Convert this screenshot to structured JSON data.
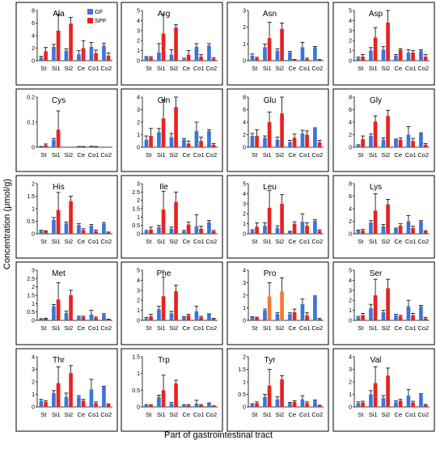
{
  "figure": {
    "ylabel": "Concentration (μmol/g)",
    "xlabel": "Part of gastrointestinal tract",
    "legend": [
      {
        "label": "GF",
        "color": "#3a76d8"
      },
      {
        "label": "SPF",
        "color": "#e8231f"
      }
    ],
    "colors": {
      "GF": "#3a76d8",
      "SPF": "#e8231f",
      "SPF_pro": "#f47a2e",
      "error_bar": "#000000"
    }
  },
  "chart_data": [
    {
      "type": "bar",
      "title": "Ala",
      "categories": [
        "St",
        "Si1",
        "Si2",
        "Ce",
        "Co1",
        "Co2"
      ],
      "ylim": [
        0,
        8
      ],
      "yticks": [
        0,
        2,
        4,
        6,
        8
      ],
      "legend": "top-right",
      "series": [
        {
          "name": "GF",
          "values": [
            0.5,
            2.2,
            1.6,
            1.0,
            2.2,
            2.4
          ],
          "errors": [
            0.2,
            0.4,
            0.3,
            0.6,
            0.7,
            0.4
          ]
        },
        {
          "name": "SPF",
          "values": [
            1.5,
            4.8,
            5.9,
            2.0,
            1.2,
            0.8
          ],
          "errors": [
            0.6,
            2.6,
            1.0,
            1.2,
            0.5,
            0.4
          ]
        }
      ]
    },
    {
      "type": "bar",
      "title": "Arg",
      "categories": [
        "St",
        "Si1",
        "Si2",
        "Ce",
        "Co1",
        "Co2"
      ],
      "ylim": [
        0,
        5
      ],
      "yticks": [
        0,
        1,
        2,
        3,
        4,
        5
      ],
      "series": [
        {
          "name": "GF",
          "values": [
            0.35,
            0.8,
            0.6,
            0.15,
            1.4,
            1.5
          ],
          "errors": [
            0.05,
            0.9,
            0.5,
            0.1,
            0.3,
            0.2
          ]
        },
        {
          "name": "SPF",
          "values": [
            0.3,
            2.7,
            3.3,
            0.6,
            0.4,
            0.2
          ],
          "errors": [
            0.1,
            1.9,
            0.3,
            0.4,
            0.2,
            0.1
          ]
        }
      ]
    },
    {
      "type": "bar",
      "title": "Asn",
      "categories": [
        "St",
        "Si1",
        "Si2",
        "Ce",
        "Co1",
        "Co2"
      ],
      "ylim": [
        0,
        3
      ],
      "yticks": [
        0,
        1,
        2,
        3
      ],
      "series": [
        {
          "name": "GF",
          "values": [
            0.3,
            0.8,
            0.6,
            0.5,
            0.8,
            0.8
          ],
          "errors": [
            0.1,
            0.2,
            0.1,
            0.05,
            0.3,
            0.05
          ]
        },
        {
          "name": "SPF",
          "values": [
            0.15,
            1.35,
            1.9,
            0.05,
            0.1,
            0.05
          ],
          "errors": [
            0.05,
            0.95,
            0.35,
            0.02,
            0.05,
            0.02
          ]
        }
      ]
    },
    {
      "type": "bar",
      "title": "Asp",
      "categories": [
        "St",
        "Si1",
        "Si2",
        "Ce",
        "Co1",
        "Co2"
      ],
      "ylim": [
        0,
        5
      ],
      "yticks": [
        0,
        1,
        2,
        3,
        4,
        5
      ],
      "series": [
        {
          "name": "GF",
          "values": [
            0.25,
            1.0,
            1.1,
            0.5,
            0.8,
            1.0
          ],
          "errors": [
            0.1,
            0.3,
            0.3,
            0.1,
            0.3,
            0.1
          ]
        },
        {
          "name": "SPF",
          "values": [
            0.4,
            2.3,
            3.8,
            1.1,
            0.8,
            0.4
          ],
          "errors": [
            0.2,
            1.0,
            1.2,
            0.1,
            0.2,
            0.2
          ]
        }
      ]
    },
    {
      "type": "bar",
      "title": "Cys",
      "categories": [
        "St",
        "Si1",
        "Si2",
        "Ce",
        "Co1",
        "Co2"
      ],
      "ylim": [
        0,
        0.2
      ],
      "yticks": [
        0,
        0.1,
        0.2
      ],
      "series": [
        {
          "name": "GF",
          "values": [
            0.002,
            0.03,
            0.0,
            0.002,
            0.003,
            0.0
          ],
          "errors": [
            0.001,
            0.005,
            0,
            0.001,
            0.001,
            0
          ]
        },
        {
          "name": "SPF",
          "values": [
            0.008,
            0.07,
            0.0,
            0.002,
            0.002,
            0.0
          ],
          "errors": [
            0.005,
            0.075,
            0,
            0.001,
            0.001,
            0
          ]
        }
      ]
    },
    {
      "type": "bar",
      "title": "Gln",
      "categories": [
        "St",
        "Si1",
        "Si2",
        "Ce",
        "Co1",
        "Co2"
      ],
      "ylim": [
        0,
        4
      ],
      "yticks": [
        0,
        1,
        2,
        3,
        4
      ],
      "series": [
        {
          "name": "GF",
          "values": [
            0.6,
            1.2,
            0.8,
            0.6,
            1.3,
            1.3
          ],
          "errors": [
            0.3,
            0.3,
            0.3,
            0.1,
            0.7,
            0.1
          ]
        },
        {
          "name": "SPF",
          "values": [
            0.9,
            2.3,
            3.2,
            0.3,
            0.5,
            0.2
          ],
          "errors": [
            0.6,
            1.5,
            0.8,
            0.2,
            0.3,
            0.1
          ]
        }
      ]
    },
    {
      "type": "bar",
      "title": "Glu",
      "categories": [
        "St",
        "Si1",
        "Si2",
        "Ce",
        "Co1",
        "Co2"
      ],
      "ylim": [
        0,
        8
      ],
      "yticks": [
        0,
        2,
        4,
        6,
        8
      ],
      "series": [
        {
          "name": "GF",
          "values": [
            1.8,
            1.5,
            1.2,
            0.8,
            2.2,
            3.0
          ],
          "errors": [
            0.4,
            0.3,
            0.4,
            0.3,
            0.5,
            0.1
          ]
        },
        {
          "name": "SPF",
          "values": [
            1.8,
            4.0,
            5.4,
            1.5,
            2.0,
            0.8
          ],
          "errors": [
            1.0,
            1.6,
            2.6,
            0.6,
            0.6,
            0.3
          ]
        }
      ]
    },
    {
      "type": "bar",
      "title": "Gly",
      "categories": [
        "St",
        "Si1",
        "Si2",
        "Ce",
        "Co1",
        "Co2"
      ],
      "ylim": [
        0,
        8
      ],
      "yticks": [
        0,
        2,
        4,
        6,
        8
      ],
      "series": [
        {
          "name": "GF",
          "values": [
            0.3,
            1.8,
            1.2,
            1.2,
            2.0,
            2.2
          ],
          "errors": [
            0.1,
            0.3,
            0.3,
            0.1,
            1.3,
            0.1
          ]
        },
        {
          "name": "SPF",
          "values": [
            1.3,
            4.1,
            5.0,
            1.2,
            1.0,
            0.4
          ],
          "errors": [
            0.5,
            0.9,
            0.9,
            0.3,
            0.4,
            0.2
          ]
        }
      ]
    },
    {
      "type": "bar",
      "title": "His",
      "categories": [
        "St",
        "Si1",
        "Si2",
        "Ce",
        "Co1",
        "Co2"
      ],
      "ylim": [
        0,
        2
      ],
      "yticks": [
        0,
        0.5,
        1,
        1.5,
        2
      ],
      "series": [
        {
          "name": "GF",
          "values": [
            0.12,
            0.55,
            0.42,
            0.35,
            0.32,
            0.4
          ],
          "errors": [
            0.02,
            0.1,
            0.05,
            0.05,
            0.05,
            0.05
          ]
        },
        {
          "name": "SPF",
          "values": [
            0.1,
            0.95,
            1.3,
            0.15,
            0.1,
            0.05
          ],
          "errors": [
            0.02,
            0.7,
            0.2,
            0.05,
            0.05,
            0.02
          ]
        }
      ]
    },
    {
      "type": "bar",
      "title": "Ile",
      "categories": [
        "St",
        "Si1",
        "Si2",
        "Ce",
        "Co1",
        "Co2"
      ],
      "ylim": [
        0,
        3
      ],
      "yticks": [
        0,
        0.5,
        1,
        1.5,
        2,
        2.5,
        3
      ],
      "series": [
        {
          "name": "GF",
          "values": [
            0.15,
            0.4,
            0.3,
            0.15,
            0.45,
            0.7
          ],
          "errors": [
            0.05,
            0.1,
            0.1,
            0.05,
            0.7,
            0.1
          ]
        },
        {
          "name": "SPF",
          "values": [
            0.25,
            1.45,
            1.9,
            0.55,
            0.3,
            0.15
          ],
          "errors": [
            0.15,
            1.1,
            0.6,
            0.15,
            0.15,
            0.05
          ]
        }
      ]
    },
    {
      "type": "bar",
      "title": "Leu",
      "categories": [
        "St",
        "Si1",
        "Si2",
        "Ce",
        "Co1",
        "Co2"
      ],
      "ylim": [
        0,
        5
      ],
      "yticks": [
        0,
        1,
        2,
        3,
        4,
        5
      ],
      "series": [
        {
          "name": "GF",
          "values": [
            0.3,
            0.8,
            0.6,
            0.2,
            1.2,
            1.3
          ],
          "errors": [
            0.1,
            0.3,
            0.2,
            0.05,
            0.8,
            0.1
          ]
        },
        {
          "name": "SPF",
          "values": [
            0.7,
            2.6,
            3.0,
            1.0,
            0.8,
            0.3
          ],
          "errors": [
            0.4,
            1.7,
            0.9,
            0.2,
            0.3,
            0.1
          ]
        }
      ]
    },
    {
      "type": "bar",
      "title": "Lys",
      "categories": [
        "St",
        "Si1",
        "Si2",
        "Ce",
        "Co1",
        "Co2"
      ],
      "ylim": [
        0,
        8
      ],
      "yticks": [
        0,
        2,
        4,
        6,
        8
      ],
      "series": [
        {
          "name": "GF",
          "values": [
            0.5,
            1.8,
            1.2,
            0.8,
            2.0,
            2.0
          ],
          "errors": [
            0.1,
            0.3,
            0.3,
            0.1,
            0.9,
            0.1
          ]
        },
        {
          "name": "SPF",
          "values": [
            0.5,
            3.7,
            4.7,
            1.3,
            0.9,
            0.4
          ],
          "errors": [
            0.2,
            2.7,
            0.8,
            0.3,
            0.3,
            0.1
          ]
        }
      ]
    },
    {
      "type": "bar",
      "title": "Met",
      "categories": [
        "St",
        "Si1",
        "Si2",
        "Ce",
        "Co1",
        "Co2"
      ],
      "ylim": [
        0,
        3
      ],
      "yticks": [
        0,
        0.5,
        1,
        1.5,
        2,
        2.5,
        3
      ],
      "series": [
        {
          "name": "GF",
          "values": [
            0.08,
            0.85,
            0.45,
            0.2,
            0.35,
            0.35
          ],
          "errors": [
            0.02,
            0.1,
            0.1,
            0.05,
            0.25,
            0.05
          ]
        },
        {
          "name": "SPF",
          "values": [
            0.1,
            1.25,
            1.5,
            0.2,
            0.15,
            0.05
          ],
          "errors": [
            0.03,
            1.0,
            0.3,
            0.05,
            0.05,
            0.02
          ]
        }
      ]
    },
    {
      "type": "bar",
      "title": "Phe",
      "categories": [
        "St",
        "Si1",
        "Si2",
        "Ce",
        "Co1",
        "Co2"
      ],
      "ylim": [
        0,
        5
      ],
      "yticks": [
        0,
        1,
        2,
        3,
        4,
        5
      ],
      "series": [
        {
          "name": "GF",
          "values": [
            0.2,
            1.1,
            0.7,
            0.3,
            0.9,
            0.6
          ],
          "errors": [
            0.1,
            0.3,
            0.2,
            0.05,
            0.5,
            0.05
          ]
        },
        {
          "name": "SPF",
          "values": [
            0.4,
            2.4,
            2.9,
            0.5,
            0.3,
            0.15
          ],
          "errors": [
            0.2,
            1.9,
            0.6,
            0.1,
            0.1,
            0.05
          ]
        }
      ]
    },
    {
      "type": "bar",
      "title": "Pro",
      "categories": [
        "St",
        "Si1",
        "Si2",
        "Ce",
        "Co1",
        "Co2"
      ],
      "ylim": [
        0,
        4
      ],
      "yticks": [
        0,
        1,
        2,
        3,
        4
      ],
      "series": [
        {
          "name": "GF",
          "values": [
            0.25,
            0.8,
            0.5,
            0.5,
            1.3,
            1.9
          ],
          "errors": [
            0.05,
            0.1,
            0.1,
            0.1,
            0.4,
            0.05
          ]
        },
        {
          "name": "SPF",
          "values": [
            0.2,
            1.9,
            2.3,
            0.65,
            0.4,
            0.1
          ],
          "errors": [
            0.05,
            1.1,
            1.1,
            0.25,
            0.2,
            0.05
          ]
        }
      ]
    },
    {
      "type": "bar",
      "title": "Ser",
      "categories": [
        "St",
        "Si1",
        "Si2",
        "Ce",
        "Co1",
        "Co2"
      ],
      "ylim": [
        0,
        5
      ],
      "yticks": [
        0,
        1,
        2,
        3,
        4,
        5
      ],
      "series": [
        {
          "name": "GF",
          "values": [
            0.3,
            1.2,
            0.8,
            0.5,
            1.4,
            1.4
          ],
          "errors": [
            0.1,
            0.4,
            0.2,
            0.1,
            0.6,
            0.1
          ]
        },
        {
          "name": "SPF",
          "values": [
            0.5,
            2.5,
            3.2,
            0.4,
            0.5,
            0.2
          ],
          "errors": [
            0.2,
            1.6,
            0.9,
            0.1,
            0.2,
            0.1
          ]
        }
      ]
    },
    {
      "type": "bar",
      "title": "Thr",
      "categories": [
        "St",
        "Si1",
        "Si2",
        "Ce",
        "Co1",
        "Co2"
      ],
      "ylim": [
        0,
        4
      ],
      "yticks": [
        0,
        1,
        2,
        3,
        4
      ],
      "series": [
        {
          "name": "GF",
          "values": [
            0.5,
            1.1,
            0.8,
            0.8,
            1.4,
            1.6
          ],
          "errors": [
            0.1,
            0.2,
            0.3,
            0.1,
            0.8,
            0.05
          ]
        },
        {
          "name": "SPF",
          "values": [
            0.4,
            1.9,
            2.7,
            0.5,
            0.3,
            0.2
          ],
          "errors": [
            0.1,
            1.3,
            0.6,
            0.1,
            0.1,
            0.05
          ]
        }
      ]
    },
    {
      "type": "bar",
      "title": "Trp",
      "categories": [
        "St",
        "Si1",
        "Si2",
        "Ce",
        "Co1",
        "Co2"
      ],
      "ylim": [
        0,
        1.5
      ],
      "yticks": [
        0,
        0.5,
        1,
        1.5
      ],
      "series": [
        {
          "name": "GF",
          "values": [
            0.05,
            0.3,
            0.1,
            0.05,
            0.1,
            0.1
          ],
          "errors": [
            0.02,
            0.05,
            0.03,
            0.02,
            0.1,
            0.02
          ]
        },
        {
          "name": "SPF",
          "values": [
            0.05,
            0.5,
            0.7,
            0.05,
            0.05,
            0.02
          ],
          "errors": [
            0.02,
            0.45,
            0.1,
            0.02,
            0.02,
            0.01
          ]
        }
      ]
    },
    {
      "type": "bar",
      "title": "Tyr",
      "categories": [
        "St",
        "Si1",
        "Si2",
        "Ce",
        "Co1",
        "Co2"
      ],
      "ylim": [
        0,
        2
      ],
      "yticks": [
        0,
        0.5,
        1,
        1.5,
        2
      ],
      "series": [
        {
          "name": "GF",
          "values": [
            0.1,
            0.4,
            0.3,
            0.15,
            0.3,
            0.25
          ],
          "errors": [
            0.03,
            0.1,
            0.1,
            0.03,
            0.15,
            0.03
          ]
        },
        {
          "name": "SPF",
          "values": [
            0.15,
            0.85,
            1.1,
            0.2,
            0.15,
            0.05
          ],
          "errors": [
            0.05,
            0.65,
            0.15,
            0.05,
            0.05,
            0.02
          ]
        }
      ]
    },
    {
      "type": "bar",
      "title": "Val",
      "categories": [
        "St",
        "Si1",
        "Si2",
        "Ce",
        "Co1",
        "Co2"
      ],
      "ylim": [
        0,
        4
      ],
      "yticks": [
        0,
        1,
        2,
        3,
        4
      ],
      "series": [
        {
          "name": "GF",
          "values": [
            0.3,
            1.0,
            0.7,
            0.4,
            0.9,
            1.0
          ],
          "errors": [
            0.1,
            0.3,
            0.2,
            0.1,
            0.5,
            0.05
          ]
        },
        {
          "name": "SPF",
          "values": [
            0.35,
            1.9,
            2.5,
            0.5,
            0.35,
            0.15
          ],
          "errors": [
            0.1,
            1.3,
            0.6,
            0.1,
            0.1,
            0.05
          ]
        }
      ]
    }
  ]
}
